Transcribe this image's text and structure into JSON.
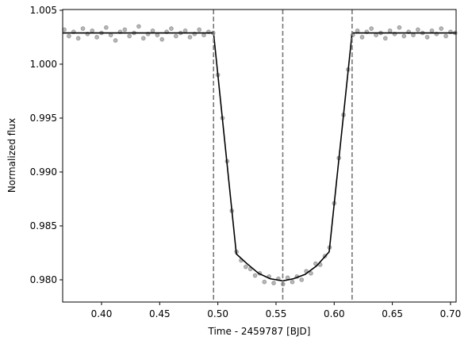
{
  "chart_data": {
    "type": "scatter",
    "xlabel": "Time - 2459787 [BJD]",
    "ylabel": "Normalized flux",
    "xlim": [
      0.3666,
      0.7048
    ],
    "ylim": [
      0.97794,
      1.00507
    ],
    "xticks": [
      {
        "value": 0.4,
        "label": "0.40"
      },
      {
        "value": 0.45,
        "label": "0.45"
      },
      {
        "value": 0.5,
        "label": "0.50"
      },
      {
        "value": 0.55,
        "label": "0.55"
      },
      {
        "value": 0.6,
        "label": "0.60"
      },
      {
        "value": 0.65,
        "label": "0.65"
      },
      {
        "value": 0.7,
        "label": "0.70"
      }
    ],
    "yticks": [
      {
        "value": 0.98,
        "label": "0.980"
      },
      {
        "value": 0.985,
        "label": "0.985"
      },
      {
        "value": 0.99,
        "label": "0.990"
      },
      {
        "value": 0.995,
        "label": "0.995"
      },
      {
        "value": 1.0,
        "label": "1.000"
      },
      {
        "value": 1.005,
        "label": "1.005"
      }
    ],
    "vlines": [
      0.4963,
      0.5558,
      0.6154
    ],
    "vline_color": "#777777",
    "series": [
      {
        "type": "scatter",
        "color": "#333333",
        "alpha": 0.35,
        "x": [
          0.368,
          0.372,
          0.376,
          0.38,
          0.384,
          0.388,
          0.392,
          0.396,
          0.4,
          0.404,
          0.408,
          0.412,
          0.416,
          0.42,
          0.424,
          0.428,
          0.432,
          0.436,
          0.44,
          0.444,
          0.448,
          0.452,
          0.456,
          0.46,
          0.464,
          0.468,
          0.472,
          0.476,
          0.48,
          0.484,
          0.488,
          0.492,
          0.496,
          0.5,
          0.504,
          0.508,
          0.512,
          0.516,
          0.52,
          0.524,
          0.528,
          0.532,
          0.536,
          0.54,
          0.544,
          0.548,
          0.552,
          0.556,
          0.56,
          0.564,
          0.568,
          0.572,
          0.576,
          0.58,
          0.584,
          0.588,
          0.592,
          0.596,
          0.6,
          0.604,
          0.608,
          0.612,
          0.616,
          0.62,
          0.624,
          0.628,
          0.632,
          0.636,
          0.64,
          0.644,
          0.648,
          0.652,
          0.656,
          0.66,
          0.664,
          0.668,
          0.672,
          0.676,
          0.68,
          0.684,
          0.688,
          0.692,
          0.696,
          0.7,
          0.704
        ],
        "values": [
          1.0032,
          1.0026,
          1.003,
          1.0024,
          1.0033,
          1.0028,
          1.0031,
          1.0025,
          1.0029,
          1.0034,
          1.0027,
          1.0022,
          1.003,
          1.0032,
          1.0026,
          1.0029,
          1.0035,
          1.0024,
          1.0028,
          1.0031,
          1.0027,
          1.0023,
          1.003,
          1.0033,
          1.0026,
          1.0029,
          1.0031,
          1.0025,
          1.0028,
          1.0032,
          1.0027,
          1.003,
          1.0029,
          0.999,
          0.995,
          0.991,
          0.9864,
          0.9826,
          0.9818,
          0.9812,
          0.981,
          0.9804,
          0.9806,
          0.9798,
          0.9803,
          0.9797,
          0.9801,
          0.9796,
          0.9802,
          0.9798,
          0.9803,
          0.98,
          0.9808,
          0.9806,
          0.9815,
          0.9814,
          0.9822,
          0.983,
          0.9871,
          0.9913,
          0.9953,
          0.9995,
          1.0027,
          1.0031,
          1.0025,
          1.003,
          1.0033,
          1.0027,
          1.0029,
          1.0024,
          1.0031,
          1.0028,
          1.0034,
          1.0026,
          1.003,
          1.0027,
          1.0032,
          1.0029,
          1.0025,
          1.0031,
          1.0028,
          1.0033,
          1.0026,
          1.003,
          1.0029
        ]
      },
      {
        "type": "line",
        "color": "#000000",
        "x": [
          0.3666,
          0.4963,
          0.5159,
          0.525,
          0.535,
          0.545,
          0.5558,
          0.565,
          0.575,
          0.585,
          0.5957,
          0.6154,
          0.7048
        ],
        "values": [
          1.0029,
          1.0029,
          0.9824,
          0.9815,
          0.9806,
          0.9801,
          0.9799,
          0.9801,
          0.9805,
          0.9813,
          0.9826,
          1.0029,
          1.0029
        ]
      }
    ]
  }
}
